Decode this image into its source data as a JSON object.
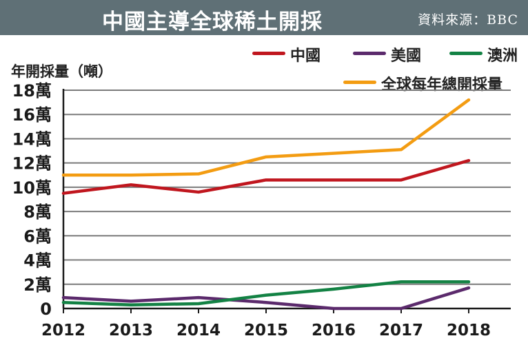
{
  "header": {
    "title": "中國主導全球稀土開採",
    "source": "資料來源：BBC",
    "background": "#5f7076"
  },
  "chart_data": {
    "type": "line",
    "title": "中國主導全球稀土開採",
    "ylabel": "年開採量（噸）",
    "xlabel": "",
    "x": [
      2012,
      2013,
      2014,
      2015,
      2016,
      2017,
      2018
    ],
    "x_tick_labels": [
      "2012",
      "2013",
      "2014",
      "2015",
      "2016",
      "2017",
      "2018"
    ],
    "ylim": [
      0,
      180000
    ],
    "y_ticks": [
      0,
      20000,
      40000,
      60000,
      80000,
      100000,
      120000,
      140000,
      160000,
      180000
    ],
    "y_tick_labels": [
      "0",
      "2萬",
      "4萬",
      "6萬",
      "8萬",
      "10萬",
      "12萬",
      "14萬",
      "16萬",
      "18萬"
    ],
    "grid": true,
    "legend_position": "top-right",
    "series": [
      {
        "name": "中國",
        "color": "#c0161e",
        "values": [
          95000,
          102000,
          96000,
          106000,
          106000,
          106000,
          122000
        ]
      },
      {
        "name": "美國",
        "color": "#5b2a6c",
        "values": [
          9000,
          6000,
          9000,
          5000,
          0,
          0,
          17000
        ]
      },
      {
        "name": "澳洲",
        "color": "#138244",
        "values": [
          5000,
          3000,
          4000,
          11000,
          16000,
          22000,
          22000
        ]
      },
      {
        "name": "全球每年總開採量",
        "color": "#f39c12",
        "values": [
          110000,
          110000,
          111000,
          125000,
          128000,
          131000,
          172000
        ]
      }
    ]
  }
}
